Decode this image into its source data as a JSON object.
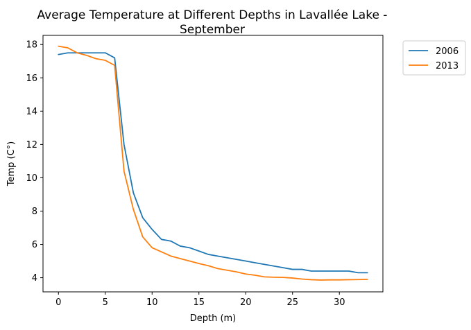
{
  "chart_data": {
    "type": "line",
    "title_lines": [
      "Average Temperature at Different Depths in Lavallée Lake -",
      "September"
    ],
    "xlabel": "Depth (m)",
    "ylabel": "Temp (C°)",
    "xlim": [
      -1.65,
      34.65
    ],
    "ylim": [
      3.15,
      18.55
    ],
    "xticks": [
      0,
      5,
      10,
      15,
      20,
      25,
      30
    ],
    "yticks": [
      4,
      6,
      8,
      10,
      12,
      14,
      16,
      18
    ],
    "grid": false,
    "legend_position": "outside-top-right",
    "series": [
      {
        "name": "2006",
        "color": "#1f77b4",
        "x": [
          0,
          1,
          2,
          3,
          4,
          5,
          6,
          7,
          8,
          9,
          10,
          11,
          12,
          13,
          14,
          15,
          16,
          17,
          18,
          19,
          20,
          21,
          22,
          23,
          24,
          25,
          26,
          27,
          28,
          29,
          30,
          31,
          32,
          33
        ],
        "y": [
          17.4,
          17.5,
          17.5,
          17.5,
          17.5,
          17.5,
          17.2,
          12.0,
          9.1,
          7.6,
          6.9,
          6.3,
          6.2,
          5.9,
          5.8,
          5.6,
          5.4,
          5.3,
          5.2,
          5.1,
          5.0,
          4.9,
          4.8,
          4.7,
          4.6,
          4.5,
          4.5,
          4.4,
          4.4,
          4.4,
          4.4,
          4.4,
          4.3,
          4.3
        ]
      },
      {
        "name": "2013",
        "color": "#ff7f0e",
        "x": [
          0,
          1,
          2,
          3,
          4,
          5,
          6,
          7,
          8,
          9,
          10,
          11,
          12,
          13,
          14,
          15,
          16,
          17,
          18,
          19,
          20,
          21,
          22,
          23,
          24,
          25,
          26,
          27,
          28,
          29,
          30,
          31,
          32,
          33
        ],
        "y": [
          17.9,
          17.8,
          17.5,
          17.35,
          17.15,
          17.05,
          16.75,
          10.4,
          8.1,
          6.45,
          5.8,
          5.55,
          5.3,
          5.15,
          5.0,
          4.85,
          4.72,
          4.55,
          4.45,
          4.35,
          4.22,
          4.15,
          4.05,
          4.03,
          4.02,
          3.98,
          3.92,
          3.88,
          3.86,
          3.87,
          3.87,
          3.88,
          3.89,
          3.9
        ]
      }
    ]
  }
}
